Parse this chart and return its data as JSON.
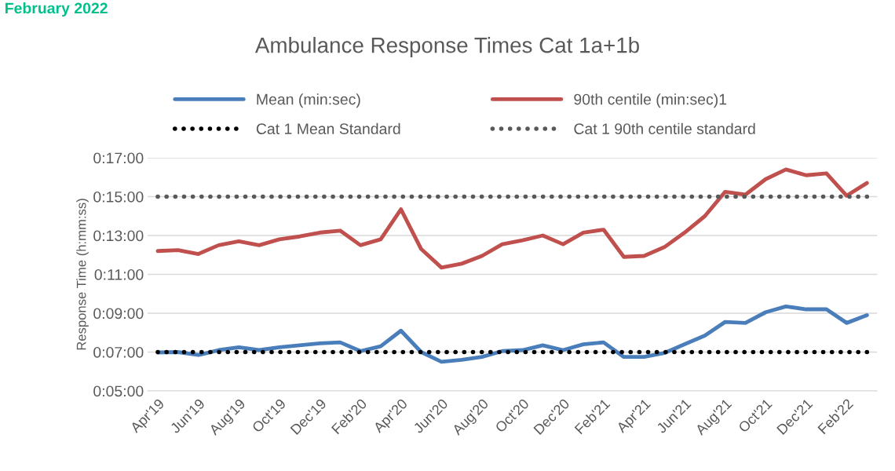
{
  "chart_data": {
    "type": "line",
    "title": "Ambulance Response Times Cat 1a+1b",
    "ylabel": "Response Time (h:mm:ss)",
    "annotations": [
      "February 2022"
    ],
    "categories": [
      "Apr'19",
      null,
      "Jun'19",
      null,
      "Aug'19",
      null,
      "Oct'19",
      null,
      "Dec'19",
      null,
      "Feb'20",
      null,
      "Apr'20",
      null,
      "Jun'20",
      null,
      "Aug'20",
      null,
      "Oct'20",
      null,
      "Dec'20",
      null,
      "Feb'21",
      null,
      "Apr'21",
      null,
      "Jun'21",
      null,
      "Aug'21",
      null,
      "Oct'21",
      null,
      "Dec'21",
      null,
      "Feb'22",
      null
    ],
    "series": [
      {
        "name": "Mean (min:sec)",
        "color": "#4a7ebb",
        "line_style": "solid",
        "values": [
          6.98,
          7.0,
          6.85,
          7.1,
          7.25,
          7.1,
          7.25,
          7.35,
          7.45,
          7.5,
          7.05,
          7.3,
          8.1,
          7.0,
          6.5,
          6.6,
          6.75,
          7.05,
          7.1,
          7.35,
          7.1,
          7.4,
          7.5,
          6.75,
          6.75,
          6.95,
          7.4,
          7.85,
          8.55,
          8.5,
          9.05,
          9.35,
          9.2,
          9.2,
          8.5,
          8.9
        ]
      },
      {
        "name": "90th centile (min:sec)1",
        "color": "#c0504d",
        "line_style": "solid",
        "values": [
          12.2,
          12.25,
          12.05,
          12.5,
          12.7,
          12.5,
          12.8,
          12.95,
          13.15,
          13.25,
          12.5,
          12.8,
          14.35,
          12.3,
          11.35,
          11.55,
          11.95,
          12.55,
          12.75,
          13.0,
          12.55,
          13.15,
          13.3,
          11.9,
          11.95,
          12.4,
          13.15,
          14.0,
          15.25,
          15.1,
          15.9,
          16.4,
          16.1,
          16.2,
          15.05,
          15.7
        ]
      },
      {
        "name": "Cat 1 Mean Standard",
        "color": "#000000",
        "line_style": "dotted",
        "values": [
          7,
          7,
          7,
          7,
          7,
          7,
          7,
          7,
          7,
          7,
          7,
          7,
          7,
          7,
          7,
          7,
          7,
          7,
          7,
          7,
          7,
          7,
          7,
          7,
          7,
          7,
          7,
          7,
          7,
          7,
          7,
          7,
          7,
          7,
          7,
          7
        ]
      },
      {
        "name": "Cat 1 90th centile standard",
        "color": "#595959",
        "line_style": "dotted",
        "values": [
          15,
          15,
          15,
          15,
          15,
          15,
          15,
          15,
          15,
          15,
          15,
          15,
          15,
          15,
          15,
          15,
          15,
          15,
          15,
          15,
          15,
          15,
          15,
          15,
          15,
          15,
          15,
          15,
          15,
          15,
          15,
          15,
          15,
          15,
          15,
          15
        ]
      }
    ],
    "ylim": [
      5,
      17
    ],
    "yticks": [
      {
        "value": 5,
        "label": "0:05:00"
      },
      {
        "value": 7,
        "label": "0:07:00"
      },
      {
        "value": 9,
        "label": "0:09:00"
      },
      {
        "value": 11,
        "label": "0:11:00"
      },
      {
        "value": 13,
        "label": "0:13:00"
      },
      {
        "value": 15,
        "label": "0:15:00"
      },
      {
        "value": 17,
        "label": "0:17:00"
      }
    ],
    "grid": "y",
    "legend": "top",
    "marker": "none"
  }
}
